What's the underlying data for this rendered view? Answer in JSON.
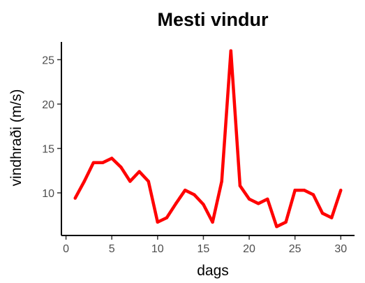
{
  "chart_data": {
    "type": "line",
    "title": "Mesti vindur",
    "xlabel": "dags",
    "ylabel": "vindhraði (m/s)",
    "x": [
      1,
      2,
      3,
      4,
      5,
      6,
      7,
      8,
      9,
      10,
      11,
      12,
      13,
      14,
      15,
      16,
      17,
      18,
      19,
      20,
      21,
      22,
      23,
      24,
      25,
      26,
      27,
      28,
      29,
      30
    ],
    "values": [
      9.4,
      11.3,
      13.4,
      13.4,
      13.9,
      12.9,
      11.3,
      12.4,
      11.3,
      6.7,
      7.2,
      8.8,
      10.3,
      9.8,
      8.7,
      6.7,
      11.3,
      26.0,
      10.8,
      9.3,
      8.8,
      9.3,
      6.2,
      6.7,
      10.3,
      10.3,
      9.8,
      7.7,
      7.2,
      10.3
    ],
    "xlim": [
      -0.5,
      31.5
    ],
    "ylim": [
      5.2,
      27.0
    ],
    "xticks": [
      0,
      5,
      10,
      15,
      20,
      25,
      30
    ],
    "yticks": [
      10,
      15,
      20,
      25
    ],
    "grid": false,
    "line_color": "#ff0000"
  }
}
